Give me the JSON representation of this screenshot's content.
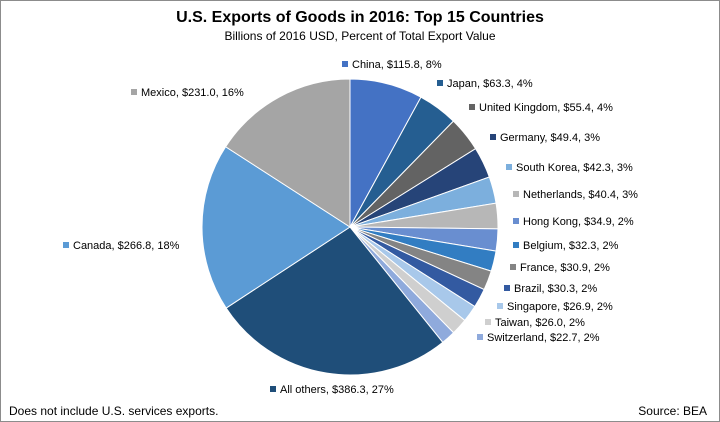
{
  "chart_data": {
    "type": "pie",
    "title": "U.S. Exports of Goods in 2016: Top 15 Countries",
    "subtitle": "Billions of 2016 USD, Percent of Total Export Value",
    "slices": [
      {
        "name": "China",
        "value": 115.8,
        "percent": 8,
        "label": "China, $115.8, 8%",
        "color": "#4472c4"
      },
      {
        "name": "Japan",
        "value": 63.3,
        "percent": 4,
        "label": "Japan, $63.3, 4%",
        "color": "#255e91"
      },
      {
        "name": "United Kingdom",
        "value": 55.4,
        "percent": 4,
        "label": "United Kingdom, $55.4, 4%",
        "color": "#636363"
      },
      {
        "name": "Germany",
        "value": 49.4,
        "percent": 3,
        "label": "Germany, $49.4, 3%",
        "color": "#264478"
      },
      {
        "name": "South Korea",
        "value": 42.3,
        "percent": 3,
        "label": "South Korea, $42.3, 3%",
        "color": "#7cafdd"
      },
      {
        "name": "Netherlands",
        "value": 40.4,
        "percent": 3,
        "label": "Netherlands, $40.4, 3%",
        "color": "#b7b7b7"
      },
      {
        "name": "Hong Kong",
        "value": 34.9,
        "percent": 2,
        "label": "Hong Kong, $34.9, 2%",
        "color": "#698ed0"
      },
      {
        "name": "Belgium",
        "value": 32.3,
        "percent": 2,
        "label": "Belgium, $32.3, 2%",
        "color": "#327dc2"
      },
      {
        "name": "France",
        "value": 30.9,
        "percent": 2,
        "label": "France, $30.9, 2%",
        "color": "#848484"
      },
      {
        "name": "Brazil",
        "value": 30.3,
        "percent": 2,
        "label": "Brazil, $30.3, 2%",
        "color": "#335aa1"
      },
      {
        "name": "Singapore",
        "value": 26.9,
        "percent": 2,
        "label": "Singapore, $26.9, 2%",
        "color": "#a8c8ea"
      },
      {
        "name": "Taiwan",
        "value": 26.0,
        "percent": 2,
        "label": "Taiwan, $26.0, 2%",
        "color": "#cfcfcf"
      },
      {
        "name": "Switzerland",
        "value": 22.7,
        "percent": 2,
        "label": "Switzerland, $22.7, 2%",
        "color": "#8faadc"
      },
      {
        "name": "All others",
        "value": 386.3,
        "percent": 27,
        "label": "All others, $386.3, 27%",
        "color": "#1f4e79"
      },
      {
        "name": "Canada",
        "value": 266.8,
        "percent": 18,
        "label": "Canada, $266.8, 18%",
        "color": "#5b9bd5"
      },
      {
        "name": "Mexico",
        "value": 231.0,
        "percent": 16,
        "label": "Mexico,  $231.0, 16%",
        "color": "#a5a5a5"
      }
    ]
  },
  "footer": {
    "note": "Does not include U.S. services exports.",
    "source": "Source: BEA"
  }
}
